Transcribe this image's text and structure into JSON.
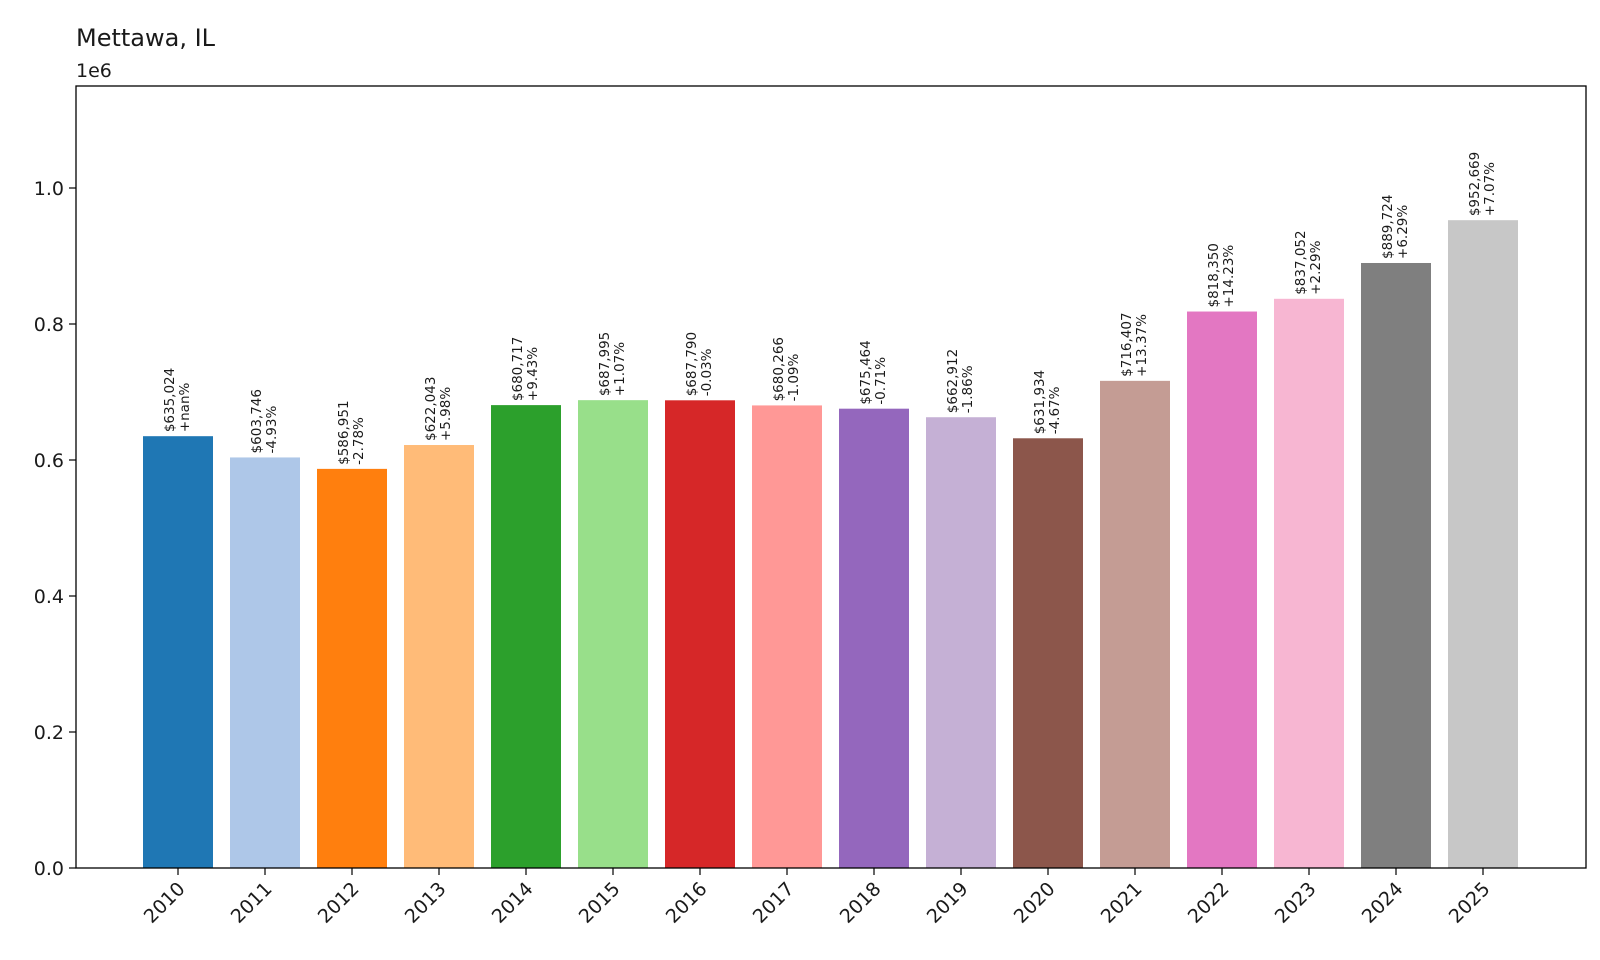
{
  "chart_data": {
    "type": "bar",
    "title": "Mettawa, IL",
    "y_offset_label": "1e6",
    "xlabel": "",
    "ylabel": "",
    "ylim": [
      0,
      1150000
    ],
    "yticks": [
      {
        "value": 0,
        "label": "0.0"
      },
      {
        "value": 200000,
        "label": "0.2"
      },
      {
        "value": 400000,
        "label": "0.4"
      },
      {
        "value": 600000,
        "label": "0.6"
      },
      {
        "value": 800000,
        "label": "0.8"
      },
      {
        "value": 1000000,
        "label": "1.0"
      }
    ],
    "grid": false,
    "categories": [
      "2010",
      "2011",
      "2012",
      "2013",
      "2014",
      "2015",
      "2016",
      "2017",
      "2018",
      "2019",
      "2020",
      "2021",
      "2022",
      "2023",
      "2024",
      "2025"
    ],
    "values": [
      635024,
      603746,
      586951,
      622043,
      680717,
      687995,
      687790,
      680266,
      675464,
      662912,
      631934,
      716407,
      818350,
      837052,
      889724,
      952669
    ],
    "value_labels": [
      "$635,024",
      "$603,746",
      "$586,951",
      "$622,043",
      "$680,717",
      "$687,995",
      "$687,790",
      "$680,266",
      "$675,464",
      "$662,912",
      "$631,934",
      "$716,407",
      "$818,350",
      "$837,052",
      "$889,724",
      "$952,669"
    ],
    "change_labels": [
      "+nan%",
      "-4.93%",
      "-2.78%",
      "+5.98%",
      "+9.43%",
      "+1.07%",
      "-0.03%",
      "-1.09%",
      "-0.71%",
      "-1.86%",
      "-4.67%",
      "+13.37%",
      "+14.23%",
      "+2.29%",
      "+6.29%",
      "+7.07%"
    ],
    "colors": [
      "#1f77b4",
      "#aec7e8",
      "#ff7f0e",
      "#ffbb78",
      "#2ca02c",
      "#98df8a",
      "#d62728",
      "#ff9896",
      "#9467bd",
      "#c5b0d5",
      "#8c564b",
      "#c49c94",
      "#e377c2",
      "#f7b6d2",
      "#7f7f7f",
      "#c7c7c7"
    ]
  }
}
